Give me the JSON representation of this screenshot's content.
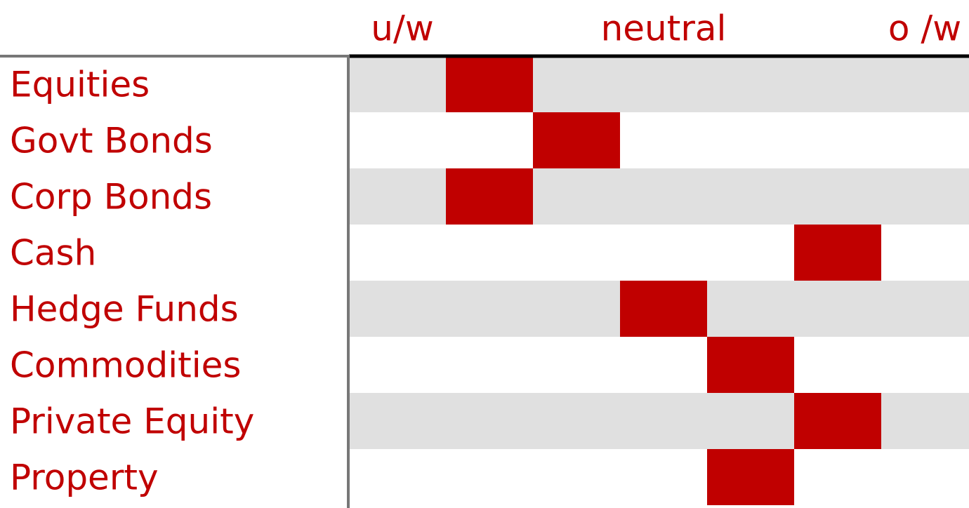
{
  "chart_data": {
    "type": "position",
    "categories": [
      "Equities",
      "Govt Bonds",
      "Corp Bonds",
      "Cash",
      "Hedge Funds",
      "Commodities",
      "Private Equity",
      "Property"
    ],
    "values": [
      -2,
      -1,
      -2,
      2,
      0,
      1,
      2,
      1
    ],
    "color": "#c00000",
    "xlim": [
      -3.5,
      3.5
    ],
    "xticks": [
      {
        "value": -3,
        "label": "u/w"
      },
      {
        "value": 0,
        "label": "neutral"
      },
      {
        "value": 3,
        "label": "o /w"
      }
    ],
    "band_color": "#e0e0e0"
  }
}
